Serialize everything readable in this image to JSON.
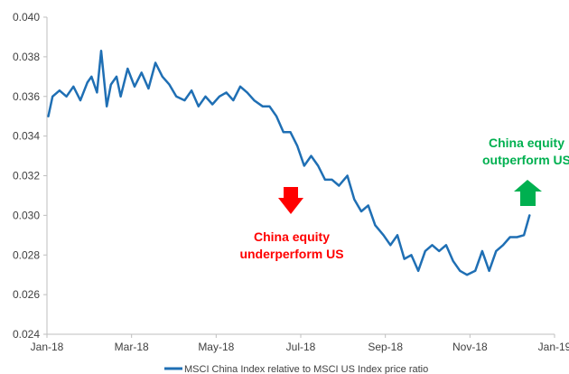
{
  "chart_data": {
    "type": "line",
    "title": "",
    "xlabel": "",
    "ylabel": "",
    "ylim": [
      0.024,
      0.04
    ],
    "yticks": [
      "0.024",
      "0.026",
      "0.028",
      "0.030",
      "0.032",
      "0.034",
      "0.036",
      "0.038",
      "0.040"
    ],
    "xlim": [
      "2018-01-01",
      "2019-01-01"
    ],
    "xticks": [
      "Jan-18",
      "Mar-18",
      "May-18",
      "Jul-18",
      "Sep-18",
      "Nov-18",
      "Jan-19"
    ],
    "grid": false,
    "legend_position": "bottom",
    "series": [
      {
        "name": "MSCI China Index relative to MSCI US Index price ratio",
        "color": "#1f6fb4",
        "x": [
          "2018-01-02",
          "2018-01-05",
          "2018-01-10",
          "2018-01-15",
          "2018-01-20",
          "2018-01-25",
          "2018-01-30",
          "2018-02-02",
          "2018-02-06",
          "2018-02-09",
          "2018-02-13",
          "2018-02-16",
          "2018-02-20",
          "2018-02-23",
          "2018-02-28",
          "2018-03-05",
          "2018-03-10",
          "2018-03-15",
          "2018-03-20",
          "2018-03-25",
          "2018-03-30",
          "2018-04-04",
          "2018-04-10",
          "2018-04-15",
          "2018-04-20",
          "2018-04-25",
          "2018-04-30",
          "2018-05-05",
          "2018-05-10",
          "2018-05-15",
          "2018-05-20",
          "2018-05-25",
          "2018-05-30",
          "2018-06-05",
          "2018-06-10",
          "2018-06-15",
          "2018-06-20",
          "2018-06-25",
          "2018-06-30",
          "2018-07-05",
          "2018-07-10",
          "2018-07-15",
          "2018-07-20",
          "2018-07-25",
          "2018-07-30",
          "2018-08-05",
          "2018-08-10",
          "2018-08-15",
          "2018-08-20",
          "2018-08-25",
          "2018-08-31",
          "2018-09-05",
          "2018-09-10",
          "2018-09-15",
          "2018-09-20",
          "2018-09-25",
          "2018-09-30",
          "2018-10-05",
          "2018-10-10",
          "2018-10-15",
          "2018-10-20",
          "2018-10-25",
          "2018-10-30",
          "2018-11-05",
          "2018-11-10",
          "2018-11-15",
          "2018-11-20",
          "2018-11-25",
          "2018-11-30",
          "2018-12-05",
          "2018-12-10",
          "2018-12-14"
        ],
        "values": [
          0.035,
          0.036,
          0.0363,
          0.036,
          0.0365,
          0.0358,
          0.0367,
          0.037,
          0.0362,
          0.0383,
          0.0355,
          0.0366,
          0.037,
          0.036,
          0.0374,
          0.0365,
          0.0372,
          0.0364,
          0.0377,
          0.037,
          0.0366,
          0.036,
          0.0358,
          0.0363,
          0.0355,
          0.036,
          0.0356,
          0.036,
          0.0362,
          0.0358,
          0.0365,
          0.0362,
          0.0358,
          0.0355,
          0.0355,
          0.035,
          0.0342,
          0.0342,
          0.0335,
          0.0325,
          0.033,
          0.0325,
          0.0318,
          0.0318,
          0.0315,
          0.032,
          0.0308,
          0.0302,
          0.0305,
          0.0295,
          0.029,
          0.0285,
          0.029,
          0.0278,
          0.028,
          0.0272,
          0.0282,
          0.0285,
          0.0282,
          0.0285,
          0.0277,
          0.0272,
          0.027,
          0.0272,
          0.0282,
          0.0272,
          0.0282,
          0.0285,
          0.0289,
          0.0289,
          0.029,
          0.03
        ]
      }
    ],
    "annotations": [
      {
        "text_lines": [
          "China equity",
          "underperform US"
        ],
        "color": "#ff0000",
        "arrow": "down"
      },
      {
        "text_lines": [
          "China equity",
          "outperform US"
        ],
        "color": "#00b050",
        "arrow": "up"
      }
    ]
  }
}
